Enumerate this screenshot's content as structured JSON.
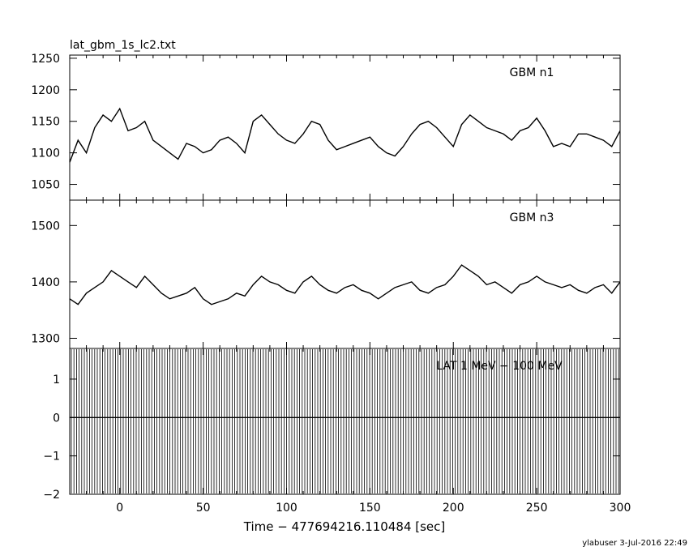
{
  "title": "lat_gbm_1s_lc2.txt",
  "footer": "ylabuser  3-Jul-2016 22:49",
  "chart_data": {
    "type": "line",
    "xlabel": "Time − 477694216.110484 [sec]",
    "xlim": [
      -30,
      300
    ],
    "xticks": [
      0,
      50,
      100,
      150,
      200,
      250,
      300
    ],
    "panels": [
      {
        "name": "GBM n1",
        "ylim": [
          1025,
          1255
        ],
        "yticks": [
          1050,
          1100,
          1150,
          1200,
          1250
        ],
        "x": [
          -30,
          -25,
          -20,
          -15,
          -10,
          -5,
          0,
          5,
          10,
          15,
          20,
          25,
          30,
          35,
          40,
          45,
          50,
          55,
          60,
          65,
          70,
          75,
          80,
          85,
          90,
          95,
          100,
          105,
          110,
          115,
          120,
          125,
          130,
          135,
          140,
          145,
          150,
          155,
          160,
          165,
          170,
          175,
          180,
          185,
          190,
          195,
          200,
          205,
          210,
          215,
          220,
          225,
          230,
          235,
          240,
          245,
          250,
          255,
          260,
          265,
          270,
          275,
          280,
          285,
          290,
          295,
          300
        ],
        "values": [
          1085,
          1120,
          1100,
          1140,
          1160,
          1150,
          1170,
          1135,
          1140,
          1150,
          1120,
          1110,
          1100,
          1090,
          1115,
          1110,
          1100,
          1105,
          1120,
          1125,
          1115,
          1100,
          1150,
          1160,
          1145,
          1130,
          1120,
          1115,
          1130,
          1150,
          1145,
          1120,
          1105,
          1110,
          1115,
          1120,
          1125,
          1110,
          1100,
          1095,
          1110,
          1130,
          1145,
          1150,
          1140,
          1125,
          1110,
          1145,
          1160,
          1150,
          1140,
          1135,
          1130,
          1120,
          1135,
          1140,
          1155,
          1135,
          1110,
          1115,
          1110,
          1130,
          1130,
          1125,
          1120,
          1110,
          1135
        ]
      },
      {
        "name": "GBM n3",
        "ylim": [
          1282,
          1545
        ],
        "yticks": [
          1300,
          1400,
          1500
        ],
        "x": [
          -30,
          -25,
          -20,
          -15,
          -10,
          -5,
          0,
          5,
          10,
          15,
          20,
          25,
          30,
          35,
          40,
          45,
          50,
          55,
          60,
          65,
          70,
          75,
          80,
          85,
          90,
          95,
          100,
          105,
          110,
          115,
          120,
          125,
          130,
          135,
          140,
          145,
          150,
          155,
          160,
          165,
          170,
          175,
          180,
          185,
          190,
          195,
          200,
          205,
          210,
          215,
          220,
          225,
          230,
          235,
          240,
          245,
          250,
          255,
          260,
          265,
          270,
          275,
          280,
          285,
          290,
          295,
          300
        ],
        "values": [
          1370,
          1360,
          1380,
          1390,
          1400,
          1420,
          1410,
          1400,
          1390,
          1410,
          1395,
          1380,
          1370,
          1375,
          1380,
          1390,
          1370,
          1360,
          1365,
          1370,
          1380,
          1375,
          1395,
          1410,
          1400,
          1395,
          1385,
          1380,
          1400,
          1410,
          1395,
          1385,
          1380,
          1390,
          1395,
          1385,
          1380,
          1370,
          1380,
          1390,
          1395,
          1400,
          1385,
          1380,
          1390,
          1395,
          1410,
          1430,
          1420,
          1410,
          1395,
          1400,
          1390,
          1380,
          1395,
          1400,
          1410,
          1400,
          1395,
          1390,
          1395,
          1385,
          1380,
          1390,
          1395,
          1380,
          1400
        ]
      },
      {
        "name": "LAT 1 MeV − 100 MeV",
        "ylim": [
          -2,
          1.8
        ],
        "yticks": [
          -2,
          -1,
          0,
          1
        ],
        "x": [],
        "values": []
      }
    ]
  }
}
